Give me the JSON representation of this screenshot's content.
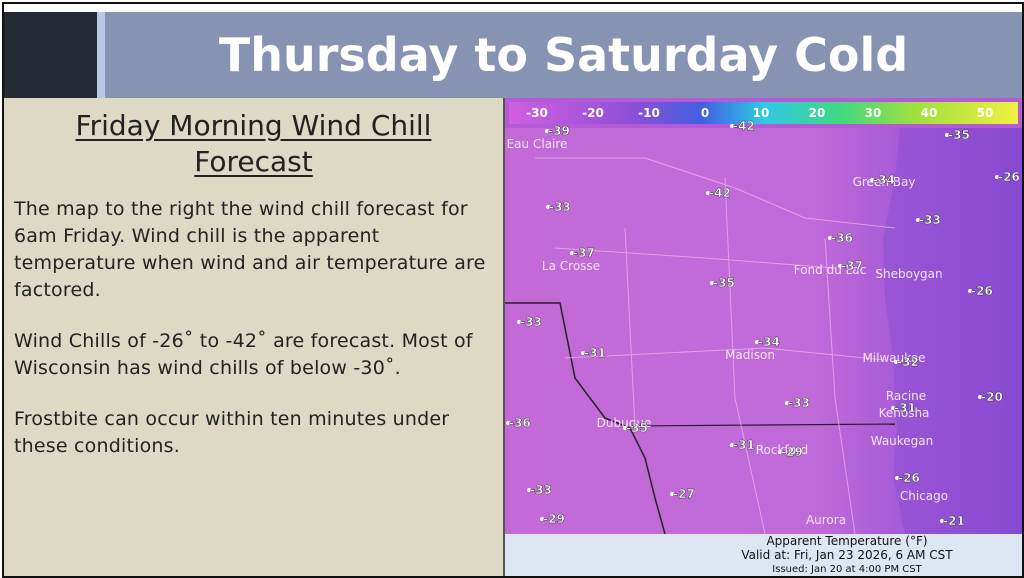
{
  "header": {
    "title": "Thursday to Saturday Cold"
  },
  "panel": {
    "heading": "Friday Morning Wind Chill Forecast",
    "paragraphs": [
      "The map to the right the wind chill forecast for 6am Friday. Wind chill is the apparent temperature when wind and air temperature are factored.",
      "Wind Chills of -26˚ to -42˚ are forecast. Most of Wisconsin has wind chills of below -30˚.",
      "Frostbite can occur within ten minutes under these conditions."
    ]
  },
  "map": {
    "colorbar": [
      -30,
      -20,
      -10,
      0,
      10,
      20,
      30,
      40,
      50
    ],
    "cities": [
      "Eau Claire",
      "Green Bay",
      "La Crosse",
      "Fond du Lac",
      "Sheboygan",
      "Madison",
      "Milwaukee",
      "Racine",
      "Kenosha",
      "Dubuque",
      "Rockford",
      "Waukegan",
      "Chicago",
      "Aurora"
    ],
    "points": [
      -39,
      -42,
      -35,
      -34,
      -26,
      -42,
      -33,
      -33,
      -36,
      -37,
      -37,
      -35,
      -26,
      -33,
      -34,
      -31,
      -32,
      -33,
      -31,
      -20,
      -36,
      -35,
      -31,
      -29,
      -26,
      -33,
      -27,
      -29,
      -21
    ],
    "caption": [
      "Apparent Temperature (°F)",
      "Valid at: Fri, Jan 23 2026,   6 AM CST",
      "Issued: Jan 20 at 4:00 PM CST"
    ]
  }
}
